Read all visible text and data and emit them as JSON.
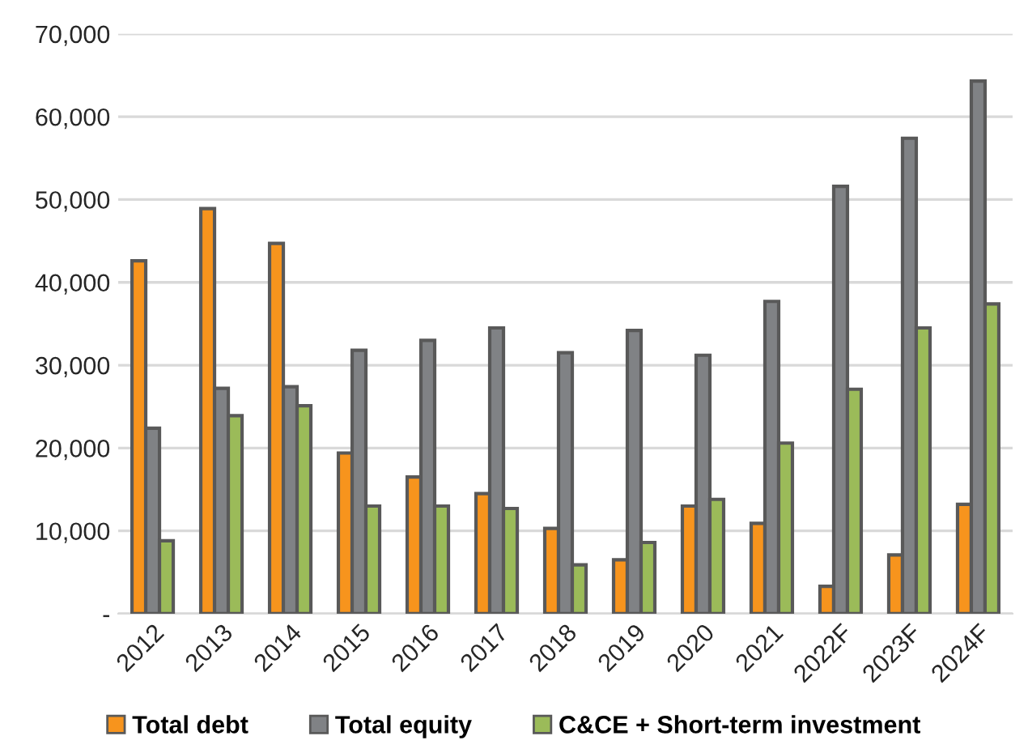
{
  "chart_data": {
    "type": "bar",
    "categories": [
      "2012",
      "2013",
      "2014",
      "2015",
      "2016",
      "2017",
      "2018",
      "2019",
      "2020",
      "2021",
      "2022F",
      "2023F",
      "2024F"
    ],
    "series": [
      {
        "name": "Total debt",
        "color": "#f7941d",
        "values": [
          42600,
          48900,
          44700,
          19400,
          16500,
          14500,
          10300,
          6500,
          13000,
          10900,
          3300,
          7100,
          13200
        ]
      },
      {
        "name": "Total equity",
        "color": "#808285",
        "values": [
          22400,
          27200,
          27400,
          31800,
          33000,
          34500,
          31500,
          34200,
          31200,
          37700,
          51600,
          57400,
          64300
        ]
      },
      {
        "name": "C&CE + Short-term investment",
        "color": "#9bbb59",
        "values": [
          8800,
          23900,
          25100,
          13000,
          13000,
          12700,
          5900,
          8600,
          13800,
          20600,
          27100,
          34500,
          37400
        ]
      }
    ],
    "ylim": [
      0,
      70000
    ],
    "yticks": [
      {
        "value": 0,
        "label": "-"
      },
      {
        "value": 10000,
        "label": "10,000"
      },
      {
        "value": 20000,
        "label": "20,000"
      },
      {
        "value": 30000,
        "label": "30,000"
      },
      {
        "value": 40000,
        "label": "40,000"
      },
      {
        "value": 50000,
        "label": "50,000"
      },
      {
        "value": 60000,
        "label": "60,000"
      },
      {
        "value": 70000,
        "label": "70,000"
      }
    ],
    "grid": "y",
    "legend": "bottom"
  }
}
